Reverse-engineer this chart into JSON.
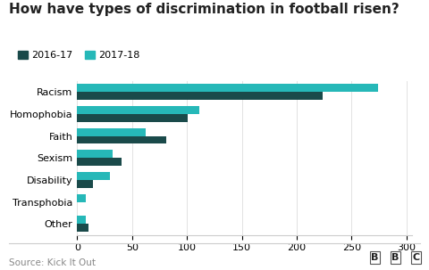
{
  "title": "How have types of discrimination in football risen?",
  "categories": [
    "Racism",
    "Homophobia",
    "Faith",
    "Sexism",
    "Disability",
    "Transphobia",
    "Other"
  ],
  "values_2016_17": [
    224,
    101,
    81,
    40,
    14,
    0,
    10
  ],
  "values_2017_18": [
    274,
    111,
    62,
    32,
    30,
    8,
    8
  ],
  "color_2016_17": "#1a4a4a",
  "color_2017_18": "#26b8b8",
  "xlim": [
    0,
    305
  ],
  "xticks": [
    0,
    50,
    100,
    150,
    200,
    250,
    300
  ],
  "legend_labels": [
    "2016-17",
    "2017-18"
  ],
  "source_text": "Source: Kick It Out",
  "bbc_text": "BBC",
  "background_color": "#ffffff",
  "title_fontsize": 11,
  "axis_fontsize": 8,
  "legend_fontsize": 8,
  "source_fontsize": 7.5,
  "bar_height": 0.36
}
